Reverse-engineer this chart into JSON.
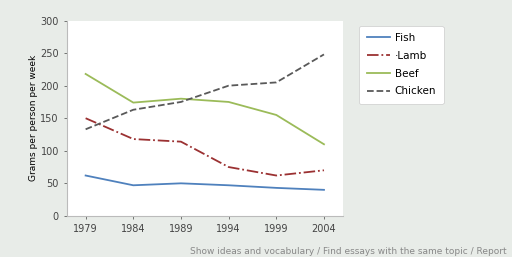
{
  "years": [
    1979,
    1984,
    1989,
    1994,
    1999,
    2004
  ],
  "fish": [
    62,
    47,
    50,
    47,
    43,
    40
  ],
  "lamb": [
    150,
    118,
    114,
    75,
    62,
    70
  ],
  "beef": [
    218,
    174,
    180,
    175,
    155,
    110
  ],
  "chicken": [
    133,
    163,
    175,
    200,
    205,
    248
  ],
  "fish_color": "#4f81bd",
  "lamb_color": "#9b3132",
  "beef_color": "#9bbb59",
  "chicken_color": "#595959",
  "ylabel": "Grams per person per week",
  "ylim": [
    0,
    300
  ],
  "yticks": [
    0,
    50,
    100,
    150,
    200,
    250,
    300
  ],
  "fig_bg": "#f0f0f0",
  "plot_bg": "#ffffff",
  "outer_bg": "#f2f4f2",
  "footer": "Show ideas and vocabulary / Find essays with the same topic / Report",
  "footer_color": "#888888",
  "footer_fontsize": 6.5
}
